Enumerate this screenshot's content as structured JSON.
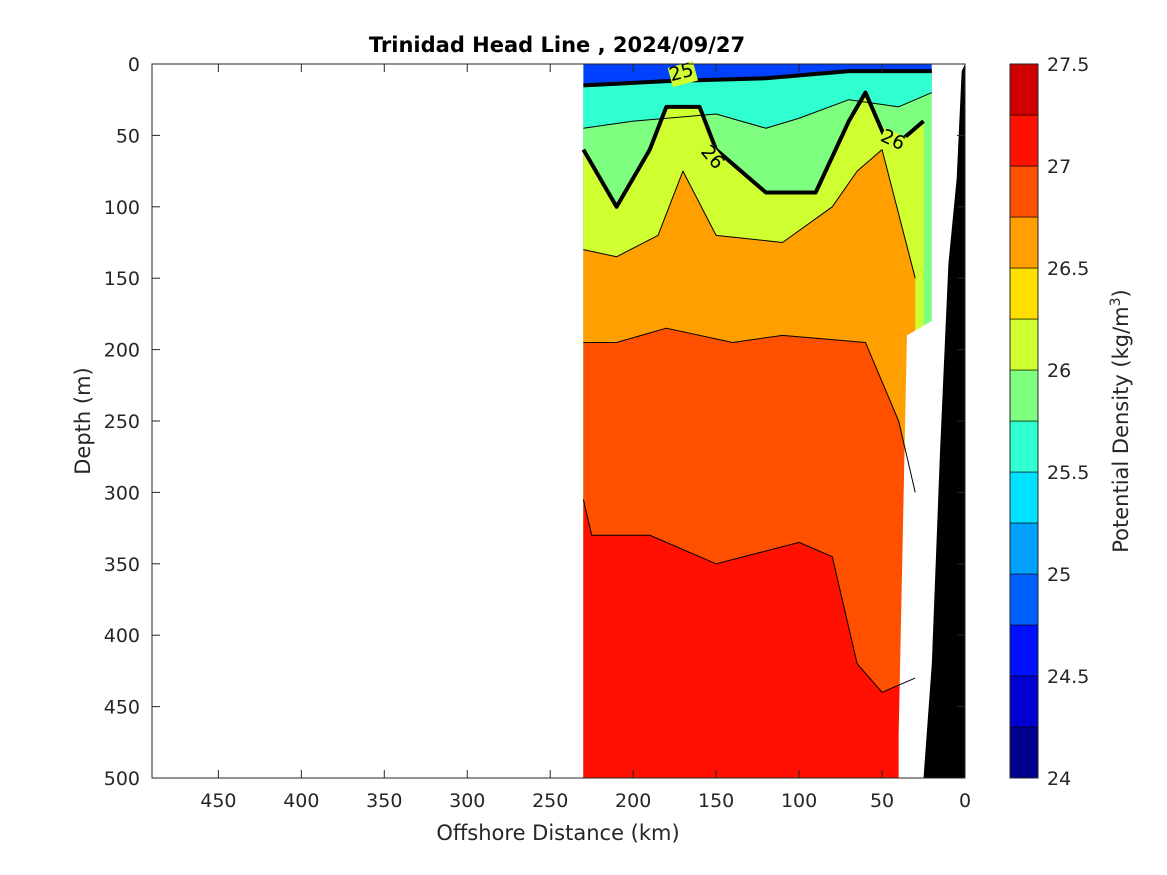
{
  "chart_data": {
    "type": "contour",
    "title": "Trinidad Head Line , 2024/09/27",
    "xlabel": "Offshore Distance (km)",
    "ylabel": "Depth (m)",
    "xlim": [
      490,
      0
    ],
    "ylim": [
      0,
      500
    ],
    "x_reversed": true,
    "y_reversed": true,
    "xticks": [
      "450",
      "400",
      "350",
      "300",
      "250",
      "200",
      "150",
      "100",
      "50",
      "0"
    ],
    "yticks": [
      "0",
      "50",
      "100",
      "150",
      "200",
      "250",
      "300",
      "350",
      "400",
      "450",
      "500"
    ],
    "colorbar": {
      "label": "Potential Density (kg/m",
      "label_superscript": "3",
      "label_suffix": ")",
      "range": [
        24,
        27.5
      ],
      "step": 0.25,
      "ticks": [
        "24",
        "24.5",
        "25",
        "25.5",
        "26",
        "26.5",
        "27",
        "27.5"
      ],
      "colors": [
        "#00008f",
        "#0000cf",
        "#0010ff",
        "#0060ff",
        "#00a0ff",
        "#00e0ff",
        "#30ffcf",
        "#7fff7f",
        "#cfff30",
        "#ffdf00",
        "#ff9f00",
        "#ff5000",
        "#ff1000",
        "#cf0000"
      ]
    },
    "contour_labels": [
      "25",
      "26",
      "26"
    ],
    "bathymetry_color": "#000000",
    "data_coverage_km": [
      230,
      20
    ],
    "bands": [
      {
        "level": 27.0,
        "top_depth_km": [
          [
            230,
            305
          ],
          [
            225,
            330
          ],
          [
            190,
            330
          ],
          [
            150,
            350
          ],
          [
            100,
            335
          ],
          [
            80,
            345
          ],
          [
            65,
            420
          ],
          [
            50,
            440
          ],
          [
            30,
            430
          ]
        ]
      },
      {
        "level": 26.75,
        "top_depth_km": [
          [
            230,
            195
          ],
          [
            210,
            195
          ],
          [
            180,
            185
          ],
          [
            140,
            195
          ],
          [
            110,
            190
          ],
          [
            60,
            195
          ],
          [
            40,
            250
          ],
          [
            30,
            300
          ]
        ]
      },
      {
        "level": 26.5,
        "top_depth_km": [
          [
            230,
            130
          ],
          [
            210,
            135
          ],
          [
            185,
            120
          ],
          [
            170,
            75
          ],
          [
            150,
            120
          ],
          [
            110,
            125
          ],
          [
            80,
            100
          ],
          [
            65,
            75
          ],
          [
            50,
            60
          ],
          [
            30,
            150
          ]
        ]
      },
      {
        "level": 26.0,
        "top_depth_km": [
          [
            230,
            60
          ],
          [
            210,
            100
          ],
          [
            190,
            60
          ],
          [
            180,
            30
          ],
          [
            160,
            30
          ],
          [
            150,
            60
          ],
          [
            120,
            90
          ],
          [
            90,
            90
          ],
          [
            70,
            40
          ],
          [
            60,
            20
          ],
          [
            45,
            60
          ],
          [
            25,
            40
          ]
        ]
      },
      {
        "level": 25.75,
        "top_depth_km": [
          [
            230,
            45
          ],
          [
            200,
            40
          ],
          [
            150,
            35
          ],
          [
            120,
            45
          ],
          [
            100,
            38
          ],
          [
            70,
            25
          ],
          [
            40,
            30
          ],
          [
            20,
            20
          ]
        ]
      },
      {
        "level": 25.0,
        "top_depth_km": [
          [
            230,
            15
          ],
          [
            180,
            12
          ],
          [
            120,
            10
          ],
          [
            70,
            5
          ],
          [
            20,
            5
          ]
        ]
      }
    ]
  }
}
